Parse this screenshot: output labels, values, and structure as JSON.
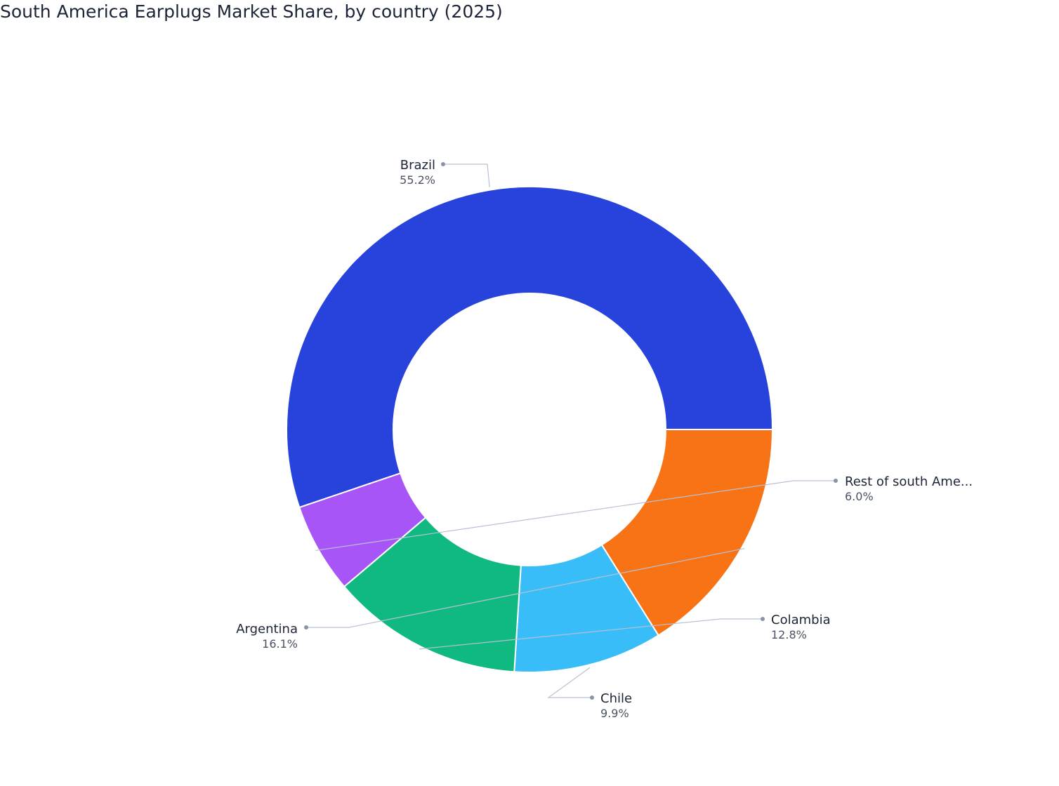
{
  "chart_data": {
    "type": "pie",
    "subtype": "donut",
    "title": "South America Earplugs Market Share, by country (2025)",
    "slices": [
      {
        "label": "Brazil",
        "display_label": "Brazil",
        "value": 55.2,
        "value_label": "55.2%",
        "color": "#2743db"
      },
      {
        "label": "Argentina",
        "display_label": "Argentina",
        "value": 16.1,
        "value_label": "16.1%",
        "color": "#f77316"
      },
      {
        "label": "Chile",
        "display_label": "Chile",
        "value": 9.9,
        "value_label": "9.9%",
        "color": "#38bdf8"
      },
      {
        "label": "Colambia",
        "display_label": "Colambia",
        "value": 12.8,
        "value_label": "12.8%",
        "color": "#10b981"
      },
      {
        "label": "Rest of south Ame...",
        "display_label": "Rest of south Ame...",
        "value": 6.0,
        "value_label": "6.0%",
        "color": "#a855f7"
      }
    ],
    "legend": "none"
  }
}
